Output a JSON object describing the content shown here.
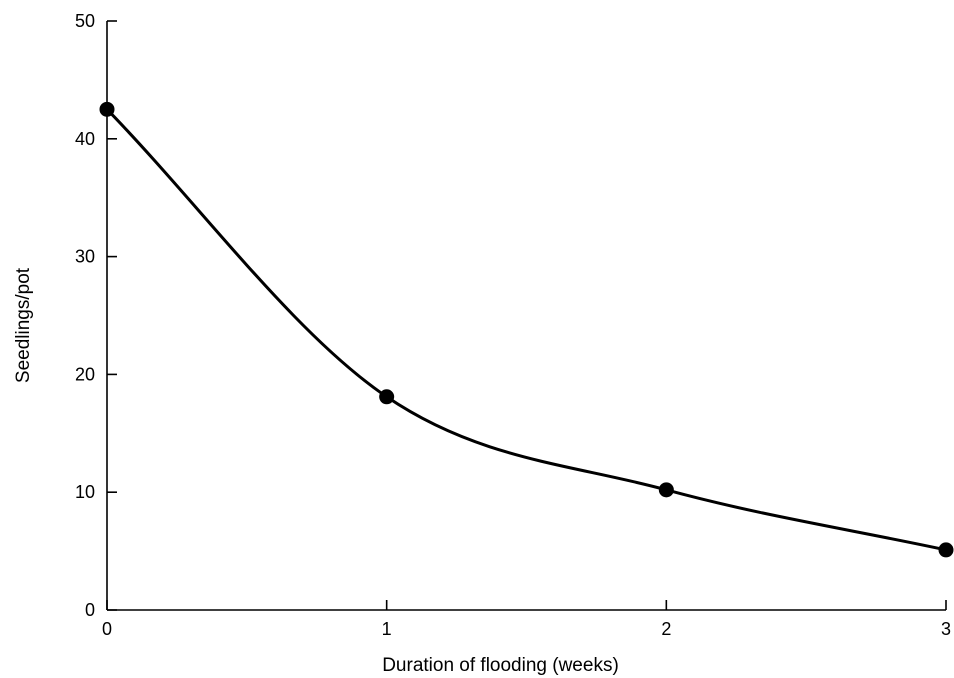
{
  "chart_data": {
    "type": "line",
    "xlabel": "Duration of flooding (weeks)",
    "ylabel": "Seedlings/pot",
    "xlim": [
      0,
      3
    ],
    "ylim": [
      0,
      50
    ],
    "x_ticks": [
      0,
      1,
      2,
      3
    ],
    "y_ticks": [
      0,
      10,
      20,
      30,
      40,
      50
    ],
    "grid": false,
    "series": [
      {
        "x": [
          0,
          1,
          2,
          3
        ],
        "y": [
          42.5,
          18.1,
          10.2,
          5.1
        ],
        "marker": "filled-circle",
        "smooth": true
      }
    ],
    "colors": {
      "line": "#000000",
      "marker": "#000000"
    }
  }
}
